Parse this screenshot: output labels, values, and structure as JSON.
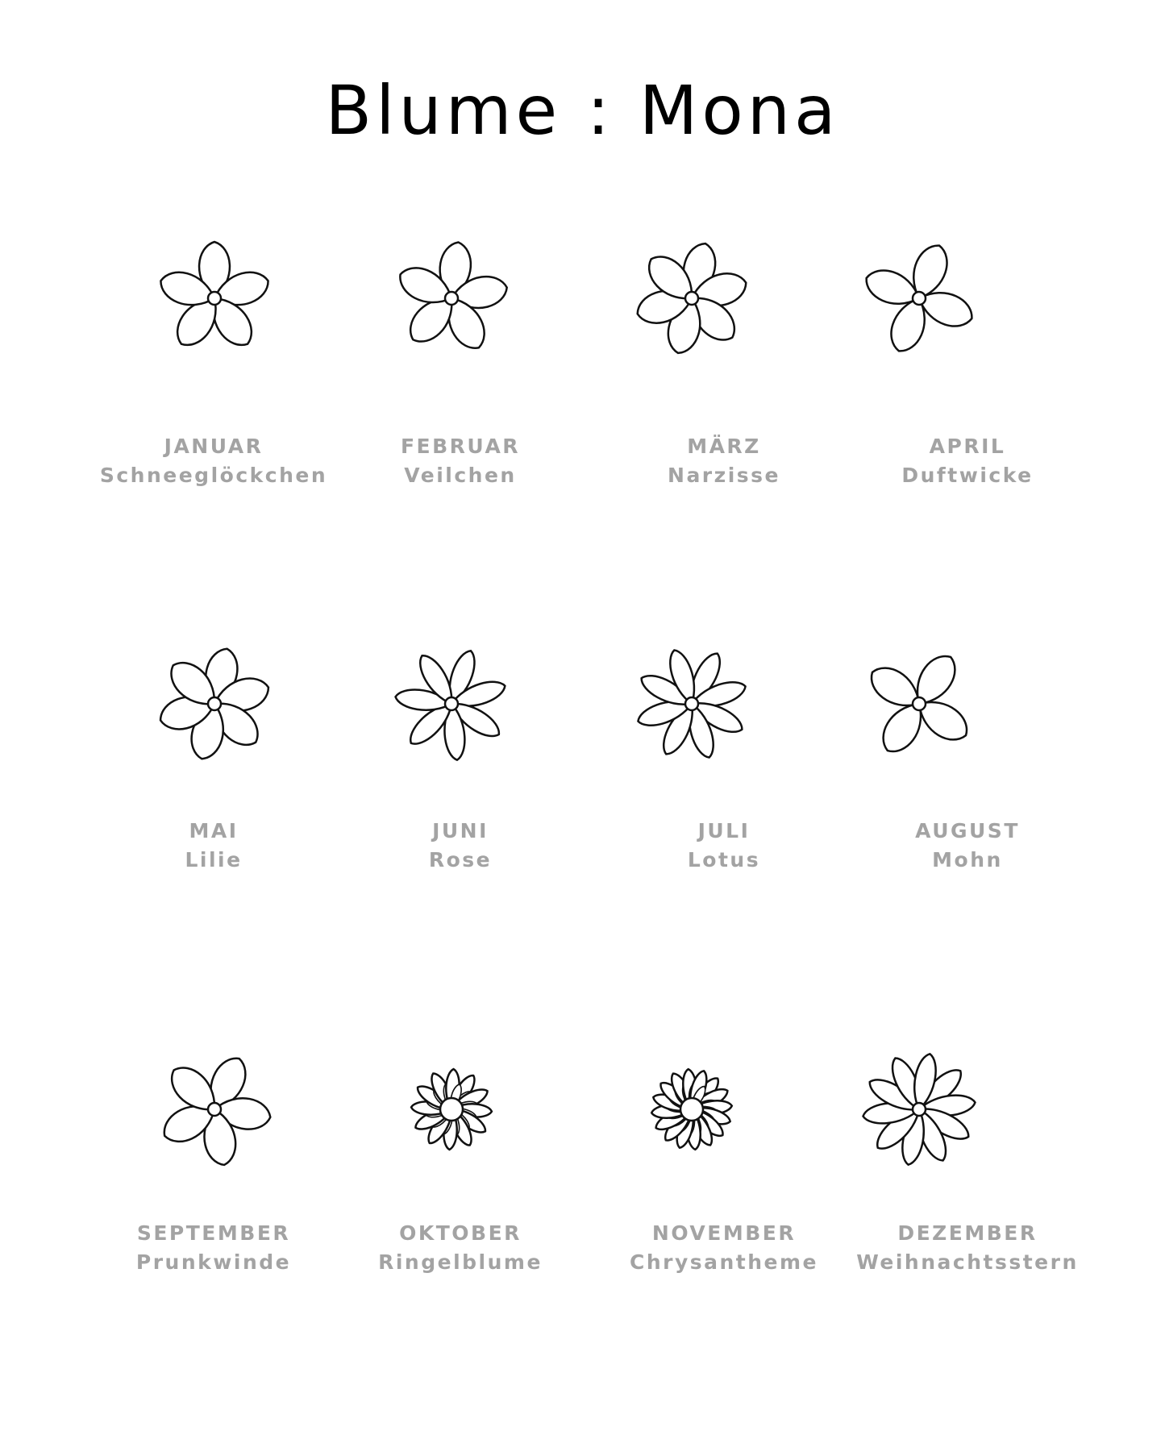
{
  "title": "Blume : Mona",
  "months": [
    {
      "month": "JANUAR",
      "flower": "Schneeglöckchen",
      "icon": "snowdrop-icon",
      "petals": 5
    },
    {
      "month": "FEBRUAR",
      "flower": "Veilchen",
      "icon": "violet-icon",
      "petals": 5
    },
    {
      "month": "MÄRZ",
      "flower": "Narzisse",
      "icon": "daffodil-icon",
      "petals": 6
    },
    {
      "month": "APRIL",
      "flower": "Duftwicke",
      "icon": "sweet-pea-icon",
      "petals": 4
    },
    {
      "month": "MAI",
      "flower": "Lilie",
      "icon": "lily-icon",
      "petals": 6
    },
    {
      "month": "JUNI",
      "flower": "Rose",
      "icon": "rose-icon",
      "petals": 7
    },
    {
      "month": "JULI",
      "flower": "Lotus",
      "icon": "lotus-icon",
      "petals": 8
    },
    {
      "month": "AUGUST",
      "flower": "Mohn",
      "icon": "poppy-icon",
      "petals": 4
    },
    {
      "month": "SEPTEMBER",
      "flower": "Prunkwinde",
      "icon": "morning-glory-icon",
      "petals": 5
    },
    {
      "month": "OKTOBER",
      "flower": "Ringelblume",
      "icon": "marigold-icon",
      "petals": 12
    },
    {
      "month": "NOVEMBER",
      "flower": "Chrysantheme",
      "icon": "chrysanthemum-icon",
      "petals": 16
    },
    {
      "month": "DEZEMBER",
      "flower": "Weihnachtsstern",
      "icon": "poinsettia-icon",
      "petals": 10
    }
  ]
}
